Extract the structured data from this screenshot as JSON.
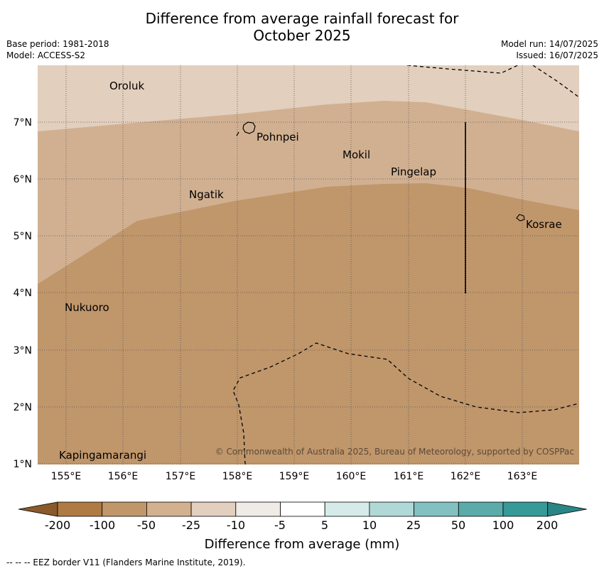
{
  "title_line1": "Difference from average rainfall forecast for",
  "title_line2": "October 2025",
  "meta_left": {
    "base_period": "Base period: 1981-2018",
    "model": "Model: ACCESS-S2"
  },
  "meta_right": {
    "model_run": "Model run: 14/07/2025",
    "issued": "Issued: 16/07/2025"
  },
  "map": {
    "lon_labels": [
      "155°E",
      "156°E",
      "157°E",
      "158°E",
      "159°E",
      "160°E",
      "161°E",
      "162°E",
      "163°E"
    ],
    "lat_labels": [
      "7°N",
      "6°N",
      "5°N",
      "4°N",
      "3°N",
      "2°N",
      "1°N"
    ],
    "places": [
      {
        "name": "Oroluk"
      },
      {
        "name": "Pohnpei"
      },
      {
        "name": "Mokil"
      },
      {
        "name": "Pingelap"
      },
      {
        "name": "Ngatik"
      },
      {
        "name": "Kosrae"
      },
      {
        "name": "Nukuoro"
      },
      {
        "name": "Kapingamarangi"
      }
    ],
    "copyright": "© Commonwealth of Australia 2025, Bureau of Meteorology, supported by COSPPac"
  },
  "colorbar": {
    "labels": [
      "-200",
      "-100",
      "-50",
      "-25",
      "-10",
      "-5",
      "5",
      "10",
      "25",
      "50",
      "100",
      "200"
    ],
    "colors": [
      "#8a5a2b",
      "#b07a43",
      "#c19669",
      "#d3b08e",
      "#e3cfbd",
      "#efebe6",
      "#ffffff",
      "#d4ebe9",
      "#b0d8d6",
      "#82c1bf",
      "#5aabaa",
      "#369a98",
      "#2a8684"
    ],
    "title": "Difference from average (mm)"
  },
  "footnote": "--  --  -- EEZ border V11 (Flanders Marine Institute, 2019)."
}
